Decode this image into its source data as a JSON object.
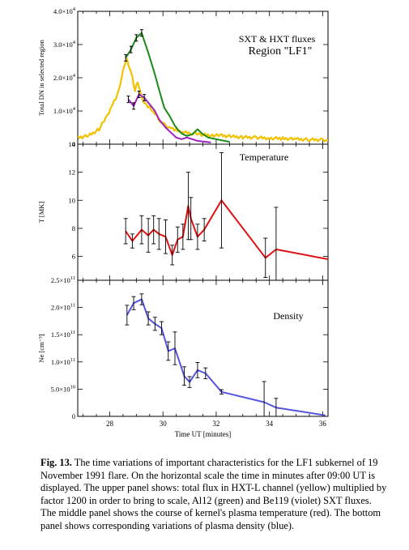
{
  "x_axis": {
    "label": "Time UT [minutes]",
    "range": [
      26.8,
      36.2
    ],
    "ticks": [
      28,
      30,
      32,
      34,
      36
    ],
    "tick_labels": [
      "28",
      "30",
      "32",
      "34",
      "36"
    ]
  },
  "chart_data": [
    {
      "type": "line",
      "panel": "fluxes",
      "annotation_1": "SXT & HXT fluxes",
      "annotation_2": "Region \"LF1\"",
      "ylabel": "Total DN in selected region",
      "ylim": [
        0,
        40000
      ],
      "yticks": [
        0,
        10000,
        20000,
        30000,
        40000
      ],
      "ytick_labels": [
        {
          "m": "0",
          "e": ""
        },
        {
          "m": "1.0×10",
          "e": "4"
        },
        {
          "m": "2.0×10",
          "e": "4"
        },
        {
          "m": "3.0×10",
          "e": "4"
        },
        {
          "m": "4.0×10",
          "e": "4"
        }
      ],
      "series": [
        {
          "color": "#f2c200",
          "x": [
            26.8,
            27.2,
            27.6,
            27.9,
            28.1,
            28.3,
            28.45,
            28.55,
            28.65,
            28.75,
            28.85,
            28.95,
            29.05,
            29.15,
            29.3,
            29.5,
            29.7,
            29.9,
            30.1,
            30.3,
            30.5,
            30.8,
            31.1,
            31.4,
            31.8,
            32.2,
            32.6,
            33.0,
            33.5,
            34.0,
            34.5,
            35.0,
            35.5,
            36.0,
            36.2
          ],
          "y": [
            2000,
            2500,
            4500,
            8500,
            12000,
            15000,
            20000,
            24000,
            25500,
            23000,
            20000,
            16000,
            19000,
            15500,
            12500,
            11000,
            9000,
            7000,
            5500,
            5000,
            4200,
            3500,
            3300,
            2900,
            2700,
            2600,
            2300,
            2100,
            2000,
            1800,
            1700,
            1500,
            1400,
            1300,
            1200
          ]
        },
        {
          "color": "#1a8a1a",
          "x": [
            28.6,
            28.8,
            29.0,
            29.2,
            29.45,
            29.7,
            29.85,
            30.05,
            30.25,
            30.45,
            30.6,
            30.75,
            30.9,
            31.1,
            31.3,
            31.5,
            31.7,
            32.0,
            32.5
          ],
          "y": [
            26000,
            28500,
            32000,
            33500,
            27500,
            21000,
            16500,
            11000,
            8500,
            5500,
            4000,
            3000,
            2500,
            3000,
            4500,
            3000,
            2000,
            1500,
            700
          ]
        },
        {
          "color": "#a020c0",
          "x": [
            28.7,
            28.9,
            29.1,
            29.3,
            29.5,
            29.7,
            29.85,
            30.1,
            30.3,
            30.5,
            30.7,
            30.9,
            31.1,
            31.3,
            31.5,
            31.8
          ],
          "y": [
            13500,
            11500,
            15000,
            14000,
            12000,
            10000,
            7500,
            5000,
            3500,
            2000,
            1500,
            2000,
            1500,
            1000,
            800,
            500
          ]
        }
      ]
    },
    {
      "type": "line",
      "panel": "temperature",
      "annotation_1": "Temperature",
      "ylabel": "T [MK]",
      "ylim": [
        4.3,
        14
      ],
      "yticks": [
        6,
        8,
        10,
        12,
        14
      ],
      "ytick_labels": [
        {
          "m": "6",
          "e": ""
        },
        {
          "m": "8",
          "e": ""
        },
        {
          "m": "10",
          "e": ""
        },
        {
          "m": "12",
          "e": ""
        },
        {
          "m": "14",
          "e": ""
        }
      ],
      "series": [
        {
          "color": "#dd1111",
          "x": [
            28.6,
            28.85,
            29.2,
            29.45,
            29.65,
            29.85,
            30.1,
            30.35,
            30.55,
            30.75,
            30.95,
            31.05,
            31.3,
            31.55,
            32.2,
            33.85,
            34.25,
            36.2
          ],
          "y": [
            7.8,
            7.1,
            7.9,
            7.5,
            7.9,
            7.6,
            7.4,
            6.1,
            7.2,
            7.4,
            9.6,
            8.7,
            7.4,
            7.9,
            10.0,
            5.9,
            6.5,
            5.8
          ],
          "err": [
            0.9,
            0.5,
            1.0,
            1.2,
            1.0,
            1.1,
            1.2,
            0.7,
            0.9,
            0.9,
            2.4,
            1.5,
            0.9,
            0.8,
            3.4,
            1.4,
            3.0,
            0
          ]
        }
      ]
    },
    {
      "type": "line",
      "panel": "density",
      "annotation_1": "Density",
      "ylabel": "Ne [cm⁻³]",
      "ylim": [
        0,
        250000000000.0
      ],
      "yticks": [
        0,
        50000000000.0,
        100000000000.0,
        150000000000.0,
        200000000000.0,
        250000000000.0
      ],
      "ytick_labels": [
        {
          "m": "0",
          "e": ""
        },
        {
          "m": "5.0×10",
          "e": "10"
        },
        {
          "m": "1.0×10",
          "e": "11"
        },
        {
          "m": "1.5×10",
          "e": "11"
        },
        {
          "m": "2.0×10",
          "e": "11"
        },
        {
          "m": "2.5×10",
          "e": "11"
        }
      ],
      "series": [
        {
          "color": "#5555dd",
          "x": [
            28.65,
            28.9,
            29.2,
            29.45,
            29.7,
            29.95,
            30.2,
            30.45,
            30.8,
            31.0,
            31.3,
            31.6,
            32.2,
            33.8,
            34.25,
            36.1
          ],
          "y": [
            186000000000.0,
            208000000000.0,
            215000000000.0,
            180000000000.0,
            170000000000.0,
            162000000000.0,
            120000000000.0,
            125000000000.0,
            74000000000.0,
            63000000000.0,
            85000000000.0,
            79000000000.0,
            45000000000.0,
            26000000000.0,
            16000000000.0,
            2000000000.0
          ],
          "err": [
            18000000000.0,
            12000000000.0,
            10000000000.0,
            12000000000.0,
            12000000000.0,
            12000000000.0,
            17000000000.0,
            30000000000.0,
            17000000000.0,
            10000000000.0,
            14000000000.0,
            10000000000.0,
            4000000000.0,
            38000000000.0,
            17000000000.0,
            0
          ]
        }
      ]
    }
  ],
  "caption": {
    "label": "Fig.   13.",
    "text": " The time variations of important characteristics for the LF1 subkernel   of 19 November 1991 flare. On the horizontal scale the time in  minutes   after 09:00 UT is displayed. The upper panel shows: total flux  in   HXT-L channel (yellow) multiplied by factor 1200 in order to bring to scale, Al12 (green) and Be119 (violet) SXT fluxes. The middle panel shows the course of kernel's plasma temperature (red). The bottom panel shows corresponding variations of plasma density (blue)."
  }
}
